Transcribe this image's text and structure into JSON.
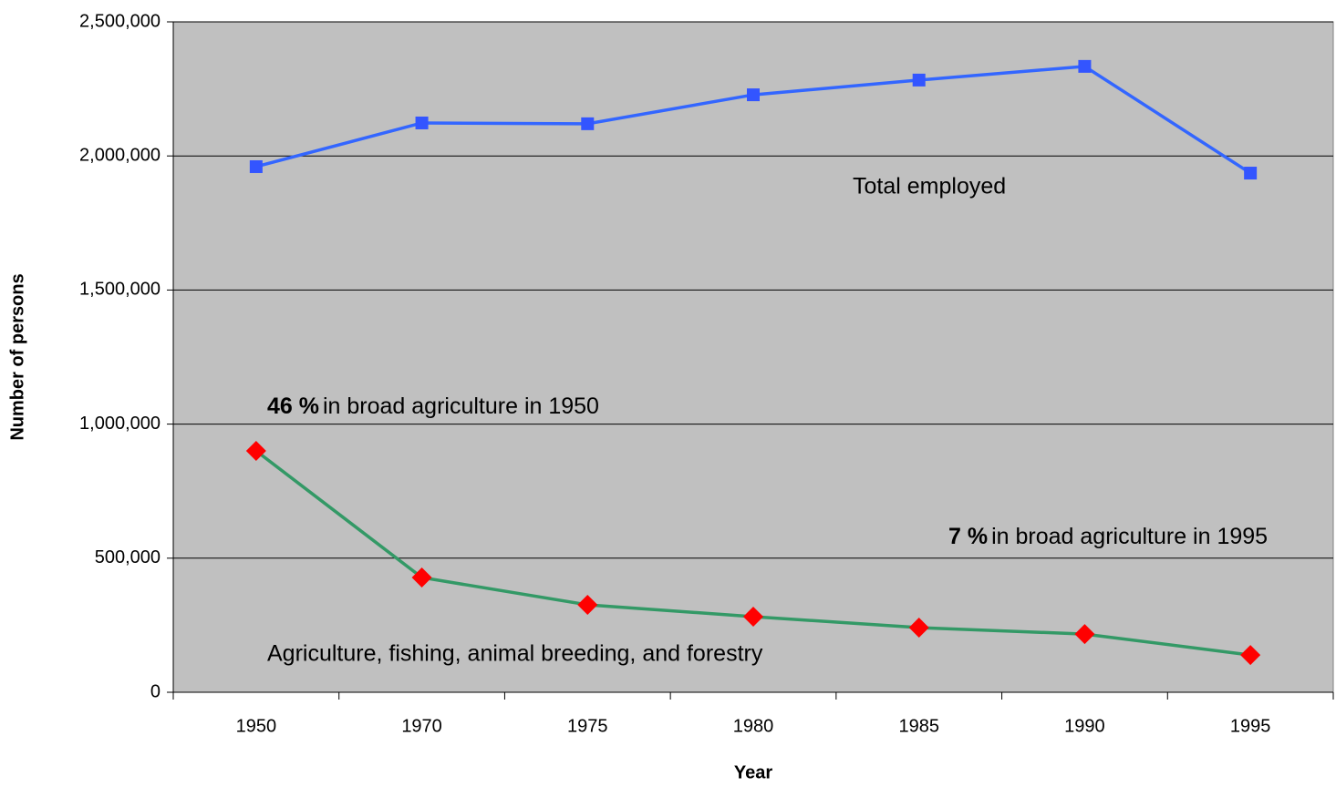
{
  "chart_data": {
    "type": "line",
    "xlabel": "Year",
    "ylabel": "Number of persons",
    "categories": [
      "1950",
      "1970",
      "1975",
      "1980",
      "1985",
      "1990",
      "1995"
    ],
    "series": [
      {
        "name": "Total employed",
        "color": "#3355ff",
        "line_color": "#3366ff",
        "marker": "square",
        "values": [
          1960000,
          2123000,
          2120000,
          2228000,
          2283000,
          2334000,
          1936000
        ]
      },
      {
        "name": "Agriculture, fishing, animal breeding, and forestry",
        "color": "#ff0000",
        "line_color": "#339966",
        "marker": "diamond",
        "values": [
          900000,
          428000,
          326000,
          282000,
          241000,
          217000,
          139000
        ]
      }
    ],
    "annotations": [
      {
        "bold": "46 %",
        "text": "in broad agriculture in 1950"
      },
      {
        "bold": "7 %",
        "text": "in broad agriculture in 1995"
      }
    ],
    "ylim": [
      0,
      2500000
    ],
    "yticks": [
      0,
      {
        "value": 500000,
        "label": "500,000"
      },
      {
        "value": 1000000,
        "label": "1,000,000"
      },
      {
        "value": 1500000,
        "label": "1,500,000"
      },
      {
        "value": 2000000,
        "label": "2,000,000"
      },
      {
        "value": 2500000,
        "label": "2,500,000"
      }
    ],
    "grid": true,
    "background": "#c0c0c0"
  }
}
